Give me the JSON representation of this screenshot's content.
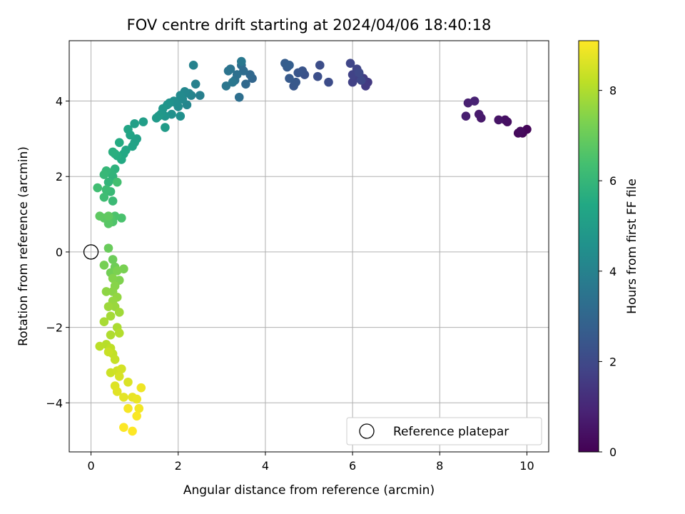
{
  "chart_data": {
    "type": "scatter",
    "title": "FOV centre drift starting at 2024/04/06 18:40:18",
    "xlabel": "Angular distance from reference (arcmin)",
    "ylabel": "Rotation from reference (arcmin)",
    "xlim": [
      -0.5,
      10.5
    ],
    "ylim": [
      -5.3,
      5.6
    ],
    "xticks": [
      0,
      2,
      4,
      6,
      8,
      10
    ],
    "xtick_labels": [
      "0",
      "2",
      "4",
      "6",
      "8",
      "10"
    ],
    "yticks": [
      -4,
      -2,
      0,
      2,
      4
    ],
    "ytick_labels": [
      "−4",
      "−2",
      "0",
      "2",
      "4"
    ],
    "grid": true,
    "colormap": "viridis",
    "colorbar": {
      "label": "Hours from first FF file",
      "range": [
        0,
        9.1
      ],
      "ticks": [
        0,
        2,
        4,
        6,
        8
      ],
      "tick_labels": [
        "0",
        "2",
        "4",
        "6",
        "8"
      ]
    },
    "legend": {
      "position": "lower right",
      "entries": [
        {
          "label": "Reference platepar",
          "marker": "open-circle"
        }
      ]
    },
    "reference_point": {
      "x": 0,
      "y": 0
    },
    "points": [
      [
        10.0,
        3.25,
        0.1
      ],
      [
        9.9,
        3.15,
        0.15
      ],
      [
        9.8,
        3.15,
        0.2
      ],
      [
        9.85,
        3.2,
        0.25
      ],
      [
        9.55,
        3.45,
        0.35
      ],
      [
        9.5,
        3.5,
        0.4
      ],
      [
        9.35,
        3.5,
        0.5
      ],
      [
        8.95,
        3.55,
        0.6
      ],
      [
        8.9,
        3.65,
        0.65
      ],
      [
        8.6,
        3.6,
        0.75
      ],
      [
        8.65,
        3.95,
        0.8
      ],
      [
        8.8,
        4.0,
        0.85
      ],
      [
        6.35,
        4.5,
        1.5
      ],
      [
        6.3,
        4.4,
        1.55
      ],
      [
        6.25,
        4.6,
        1.6
      ],
      [
        6.1,
        4.7,
        1.65
      ],
      [
        6.05,
        4.6,
        1.7
      ],
      [
        6.0,
        4.5,
        1.75
      ],
      [
        6.0,
        4.7,
        1.8
      ],
      [
        6.1,
        4.85,
        1.85
      ],
      [
        5.95,
        5.0,
        1.9
      ],
      [
        6.2,
        4.55,
        1.95
      ],
      [
        6.15,
        4.75,
        2.0
      ],
      [
        5.45,
        4.5,
        2.1
      ],
      [
        5.25,
        4.95,
        2.15
      ],
      [
        5.2,
        4.65,
        2.2
      ],
      [
        4.9,
        4.7,
        2.3
      ],
      [
        4.85,
        4.8,
        2.35
      ],
      [
        4.75,
        4.75,
        2.4
      ],
      [
        4.65,
        4.4,
        2.45
      ],
      [
        4.7,
        4.5,
        2.5
      ],
      [
        4.55,
        4.6,
        2.55
      ],
      [
        4.5,
        4.9,
        2.6
      ],
      [
        4.45,
        5.0,
        2.65
      ],
      [
        4.55,
        4.95,
        2.7
      ],
      [
        3.7,
        4.6,
        3.0
      ],
      [
        3.65,
        4.7,
        3.05
      ],
      [
        3.55,
        4.45,
        3.1
      ],
      [
        3.5,
        4.8,
        3.2
      ],
      [
        3.45,
        4.95,
        3.25
      ],
      [
        3.4,
        4.1,
        3.3
      ],
      [
        3.35,
        4.7,
        3.35
      ],
      [
        3.3,
        4.55,
        3.4
      ],
      [
        3.2,
        4.85,
        3.45
      ],
      [
        3.15,
        4.8,
        3.5
      ],
      [
        3.1,
        4.4,
        3.55
      ],
      [
        3.25,
        4.5,
        3.6
      ],
      [
        3.45,
        5.05,
        3.65
      ],
      [
        2.5,
        4.15,
        3.9
      ],
      [
        2.4,
        4.45,
        3.95
      ],
      [
        2.35,
        4.95,
        4.0
      ],
      [
        2.3,
        4.15,
        4.05
      ],
      [
        2.25,
        4.2,
        4.1
      ],
      [
        2.2,
        3.9,
        4.15
      ],
      [
        2.15,
        4.25,
        4.2
      ],
      [
        2.1,
        4.05,
        4.25
      ],
      [
        2.05,
        4.15,
        4.3
      ],
      [
        2.0,
        3.85,
        4.35
      ],
      [
        1.95,
        3.95,
        4.4
      ],
      [
        1.9,
        4.0,
        4.45
      ],
      [
        2.05,
        3.6,
        4.5
      ],
      [
        1.85,
        3.65,
        4.55
      ],
      [
        1.8,
        3.95,
        4.6
      ],
      [
        1.75,
        3.9,
        4.65
      ],
      [
        1.7,
        3.6,
        4.7
      ],
      [
        1.65,
        3.8,
        4.75
      ],
      [
        1.6,
        3.65,
        4.8
      ],
      [
        1.55,
        3.6,
        4.85
      ],
      [
        1.5,
        3.55,
        4.9
      ],
      [
        1.7,
        3.3,
        4.95
      ],
      [
        1.2,
        3.45,
        5.05
      ],
      [
        1.0,
        3.4,
        5.1
      ],
      [
        1.05,
        3.0,
        5.15
      ],
      [
        1.0,
        2.9,
        5.2
      ],
      [
        0.95,
        2.8,
        5.25
      ],
      [
        0.9,
        3.1,
        5.3
      ],
      [
        0.85,
        3.25,
        5.35
      ],
      [
        0.8,
        2.7,
        5.4
      ],
      [
        0.75,
        2.6,
        5.45
      ],
      [
        0.7,
        2.45,
        5.5
      ],
      [
        0.65,
        2.9,
        5.55
      ],
      [
        0.6,
        2.55,
        5.6
      ],
      [
        0.55,
        2.6,
        5.65
      ],
      [
        0.5,
        2.65,
        5.7
      ],
      [
        0.55,
        2.2,
        5.8
      ],
      [
        0.5,
        2.0,
        5.85
      ],
      [
        0.45,
        2.1,
        5.9
      ],
      [
        0.4,
        1.85,
        5.95
      ],
      [
        0.35,
        2.15,
        6.0
      ],
      [
        0.3,
        2.05,
        6.05
      ],
      [
        0.45,
        1.6,
        6.1
      ],
      [
        0.5,
        1.35,
        6.15
      ],
      [
        0.35,
        1.65,
        6.2
      ],
      [
        0.3,
        1.45,
        6.25
      ],
      [
        0.15,
        1.7,
        6.3
      ],
      [
        0.6,
        1.85,
        6.35
      ],
      [
        0.7,
        0.9,
        6.45
      ],
      [
        0.55,
        0.95,
        6.5
      ],
      [
        0.5,
        0.8,
        6.55
      ],
      [
        0.45,
        0.9,
        6.6
      ],
      [
        0.4,
        0.85,
        6.65
      ],
      [
        0.4,
        0.75,
        6.7
      ],
      [
        0.3,
        0.9,
        6.75
      ],
      [
        0.2,
        0.95,
        6.8
      ],
      [
        0.4,
        0.95,
        6.85
      ],
      [
        0.4,
        0.1,
        7.0
      ],
      [
        0.5,
        -0.2,
        7.05
      ],
      [
        0.55,
        -0.4,
        7.1
      ],
      [
        0.45,
        -0.55,
        7.15
      ],
      [
        0.3,
        -0.35,
        7.2
      ],
      [
        0.75,
        -0.45,
        7.25
      ],
      [
        0.6,
        -0.5,
        7.3
      ],
      [
        0.65,
        -0.75,
        7.35
      ],
      [
        0.5,
        -0.7,
        7.4
      ],
      [
        0.55,
        -0.9,
        7.45
      ],
      [
        0.5,
        -1.05,
        7.5
      ],
      [
        0.35,
        -1.05,
        7.55
      ],
      [
        0.6,
        -1.2,
        7.6
      ],
      [
        0.5,
        -1.3,
        7.65
      ],
      [
        0.55,
        -1.45,
        7.7
      ],
      [
        0.4,
        -1.45,
        7.75
      ],
      [
        0.65,
        -1.6,
        7.8
      ],
      [
        0.45,
        -1.7,
        7.85
      ],
      [
        0.3,
        -1.85,
        7.9
      ],
      [
        0.6,
        -2.0,
        7.95
      ],
      [
        0.45,
        -2.2,
        8.0
      ],
      [
        0.65,
        -2.15,
        8.05
      ],
      [
        0.35,
        -2.45,
        8.1
      ],
      [
        0.2,
        -2.5,
        8.15
      ],
      [
        0.45,
        -2.55,
        8.2
      ],
      [
        0.5,
        -2.7,
        8.25
      ],
      [
        0.55,
        -2.85,
        8.3
      ],
      [
        0.4,
        -2.65,
        8.35
      ],
      [
        0.45,
        -3.2,
        8.4
      ],
      [
        0.6,
        -3.15,
        8.45
      ],
      [
        0.7,
        -3.1,
        8.5
      ],
      [
        0.65,
        -3.3,
        8.55
      ],
      [
        0.85,
        -3.45,
        8.6
      ],
      [
        0.55,
        -3.55,
        8.65
      ],
      [
        0.6,
        -3.7,
        8.7
      ],
      [
        0.75,
        -3.85,
        8.75
      ],
      [
        0.95,
        -3.85,
        8.8
      ],
      [
        1.05,
        -3.9,
        8.85
      ],
      [
        1.15,
        -3.6,
        8.9
      ],
      [
        1.1,
        -4.15,
        8.95
      ],
      [
        0.85,
        -4.15,
        9.0
      ],
      [
        1.05,
        -4.35,
        9.05
      ],
      [
        0.75,
        -4.65,
        9.08
      ],
      [
        0.95,
        -4.75,
        9.1
      ]
    ]
  }
}
